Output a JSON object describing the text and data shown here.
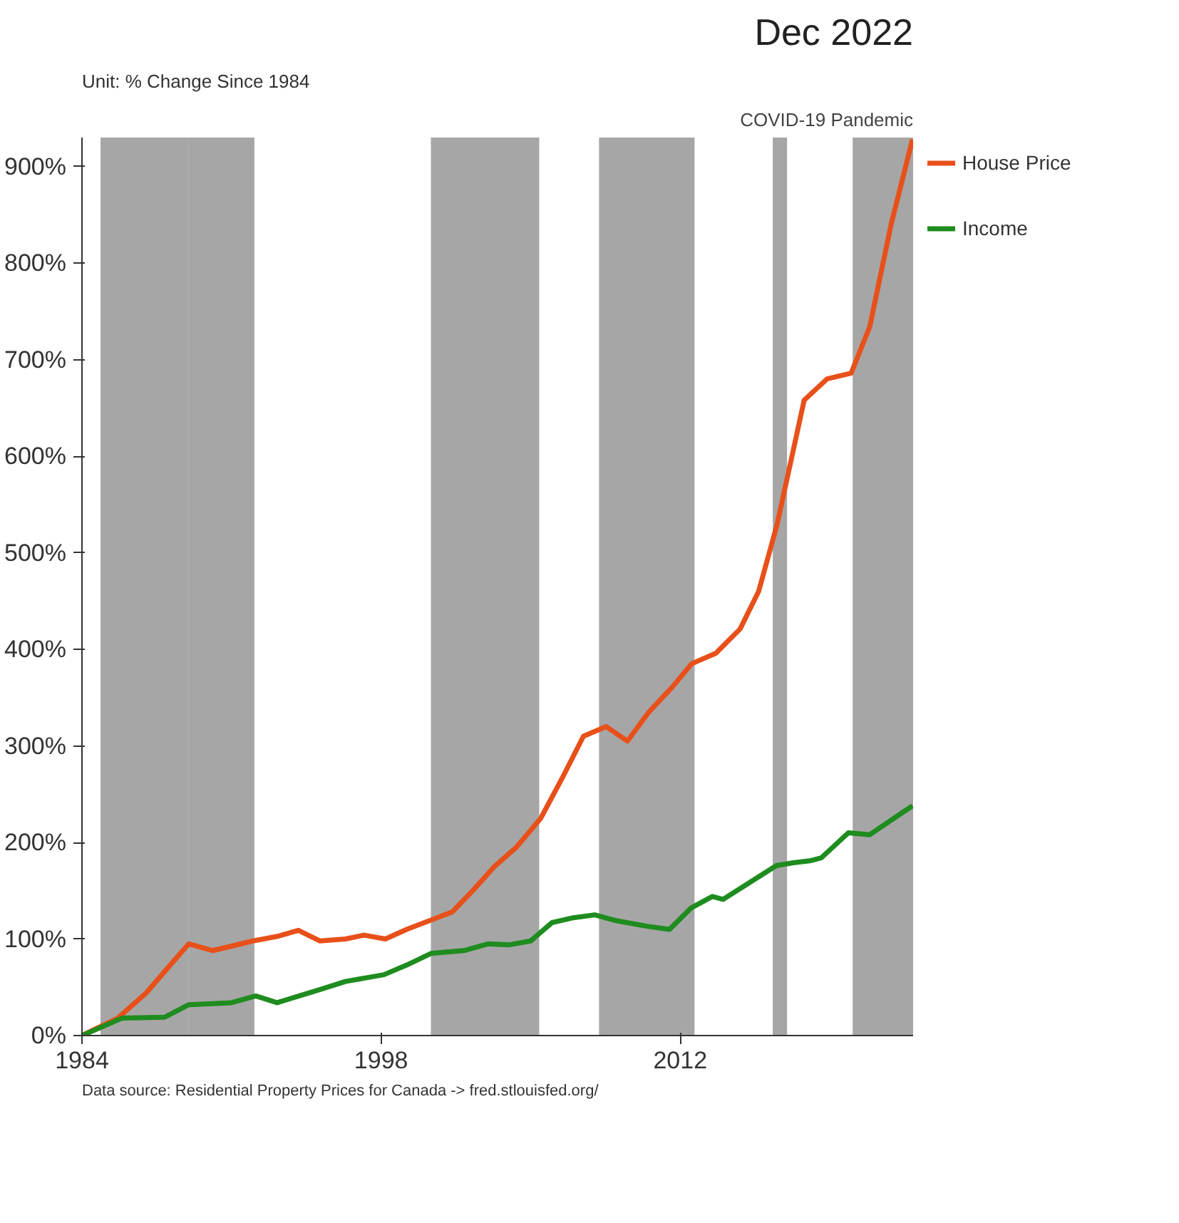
{
  "chart_data": {
    "type": "line",
    "title": "Dec 2022",
    "ylabel": "Unit: % Change Since 1984",
    "annotations": [
      "Data source: Residential Property Prices for Canada -> fred.stlouisfed.org/"
    ],
    "xlim": [
      1984,
      2022.9
    ],
    "xticks": [
      1984,
      1998,
      2012
    ],
    "ylim": [
      0,
      930
    ],
    "yticks": [
      {
        "value": 0,
        "label": "0%"
      },
      {
        "value": 100,
        "label": "100%"
      },
      {
        "value": 200,
        "label": "200%"
      },
      {
        "value": 300,
        "label": "300%"
      },
      {
        "value": 400,
        "label": "400%"
      },
      {
        "value": 500,
        "label": "500%"
      },
      {
        "value": 600,
        "label": "600%"
      },
      {
        "value": 700,
        "label": "700%"
      },
      {
        "value": 800,
        "label": "800%"
      },
      {
        "value": 900,
        "label": "900%"
      }
    ],
    "grid": false,
    "legend": "top right",
    "line_style": "solid",
    "bands": [
      {
        "axis": "x",
        "from": 1984.87,
        "to": 1989.0,
        "label": null,
        "color": "#a6a6a6"
      },
      {
        "axis": "x",
        "from": 1989.0,
        "to": 1992.07,
        "label": null,
        "color": "#a6a6a6"
      },
      {
        "axis": "x",
        "from": 2000.33,
        "to": 2005.4,
        "label": null,
        "color": "#a6a6a6"
      },
      {
        "axis": "x",
        "from": 2008.2,
        "to": 2012.67,
        "label": null,
        "color": "#a6a6a6"
      },
      {
        "axis": "x",
        "from": 2016.33,
        "to": 2017.0,
        "label": null,
        "color": "#a6a6a6"
      },
      {
        "axis": "x",
        "from": 2020.07,
        "to": 2022.9,
        "label": "COVID-19 Pandemic",
        "color": "#a6a6a6"
      }
    ],
    "series": [
      {
        "name": "House Price",
        "color": "#e8501a",
        "x": [
          1984,
          1985.67,
          1987,
          1988.13,
          1989,
          1990.13,
          1992,
          1993.2,
          1994.13,
          1995.13,
          1996.33,
          1997.2,
          1998.2,
          1999.2,
          2001.33,
          2002.33,
          2003.3,
          2004.33,
          2005.47,
          2006.53,
          2007.47,
          2008.53,
          2009.53,
          2010.53,
          2011.67,
          2012.53,
          2013.67,
          2014.8,
          2015.67,
          2016.53,
          2017.2,
          2017.8,
          2018.87,
          2020.0,
          2020.87,
          2021.87,
          2022.87
        ],
        "values": [
          0,
          18,
          44,
          73,
          95,
          88,
          98,
          103,
          109,
          98,
          100,
          104,
          100,
          110,
          128,
          151,
          175,
          195,
          225,
          269,
          310,
          320,
          305,
          335,
          362,
          385,
          396,
          421,
          460,
          529,
          597,
          658,
          680,
          686,
          734,
          840,
          928
        ]
      },
      {
        "name": "Income",
        "color": "#1e8c1e",
        "x": [
          1984,
          1985.87,
          1987.87,
          1989,
          1991,
          1992.13,
          1993.13,
          1995.2,
          1996.33,
          1998.13,
          1999.2,
          2000.33,
          2001.87,
          2003,
          2004,
          2005,
          2006,
          2007,
          2008,
          2009,
          2010.5,
          2011.5,
          2012.5,
          2013.5,
          2014,
          2015.5,
          2016.5,
          2017.3,
          2018.07,
          2018.6,
          2019.87,
          2020.87,
          2022.87
        ],
        "values": [
          0,
          18,
          19,
          32,
          34,
          41,
          34,
          48,
          56,
          63,
          73,
          85,
          88,
          95,
          94,
          98,
          117,
          122,
          125,
          119,
          113,
          110,
          132,
          144,
          141,
          162,
          176,
          179,
          181,
          184,
          210,
          208,
          238
        ]
      }
    ]
  }
}
